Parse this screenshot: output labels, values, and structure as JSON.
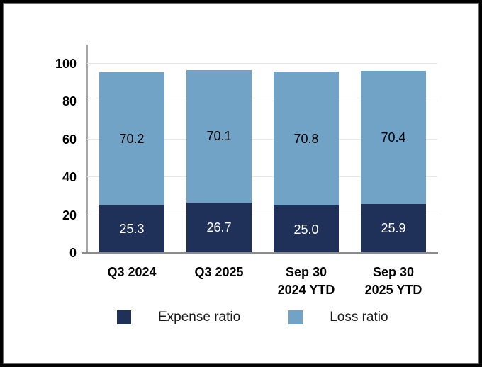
{
  "chart_data": {
    "type": "bar",
    "stacked": true,
    "title": "",
    "xlabel": "",
    "ylabel": "",
    "categories": [
      "Q3 2024",
      "Q3 2025",
      "Sep 30 2024 YTD",
      "Sep 30 2025 YTD"
    ],
    "category_display_labels": [
      "Q3 2024",
      "Q3 2025",
      "Sep 30\n2024 YTD",
      "Sep 30\n2025 YTD"
    ],
    "series": [
      {
        "name": "Expense ratio",
        "color": "#1f3158",
        "label_color": "#ffffff",
        "values": [
          25.3,
          26.7,
          25.0,
          25.9
        ]
      },
      {
        "name": "Loss ratio",
        "color": "#71a3c6",
        "label_color": "#000000",
        "values": [
          70.2,
          70.1,
          70.8,
          70.4
        ]
      }
    ],
    "yticks": [
      0,
      20,
      40,
      60,
      80,
      100
    ],
    "ylim": [
      0,
      100
    ],
    "grid": true,
    "legend_position": "bottom"
  },
  "style": {
    "background": "#ffffff",
    "frame_border_color": "#000000",
    "gridline_color": "#e8e8e8",
    "y_axis_line_color": "#a6a6a6",
    "x_axis_line_color": "#8c8c8c",
    "tick_label_color": "#000000"
  }
}
